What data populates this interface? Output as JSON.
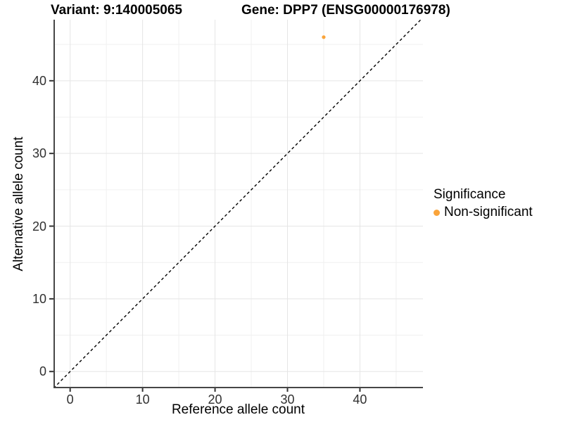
{
  "chart_data": {
    "type": "scatter",
    "title_left": "Variant: 9:140005065",
    "title_right": "Gene: DPP7 (ENSG00000176978)",
    "xlabel": "Reference allele count",
    "ylabel": "Alternative allele count",
    "xlim": [
      -2.3,
      48.7
    ],
    "ylim": [
      -2.3,
      48.4
    ],
    "xticks": [
      0,
      10,
      20,
      30,
      40
    ],
    "yticks": [
      0,
      10,
      20,
      30,
      40
    ],
    "xticks_minor": [
      5,
      15,
      25,
      35,
      45
    ],
    "yticks_minor": [
      5,
      15,
      25,
      35,
      45
    ],
    "grid": true,
    "points": [
      {
        "x": 35,
        "y": 46,
        "series": "Non-significant"
      }
    ],
    "reference_line": {
      "slope": 1,
      "intercept": 0,
      "style": "dashed",
      "color": "#000000"
    },
    "legend": {
      "title": "Significance",
      "position": "right",
      "items": [
        {
          "label": "Non-significant",
          "color": "#FAA43A"
        }
      ]
    },
    "colors": {
      "point": "#FAA43A",
      "axis_line": "#464646",
      "tick_mark": "#333333",
      "tick_text": "#303030",
      "grid_major": "#E5E5E5",
      "grid_minor": "#F0F0F0",
      "background": "#FFFFFF"
    }
  }
}
